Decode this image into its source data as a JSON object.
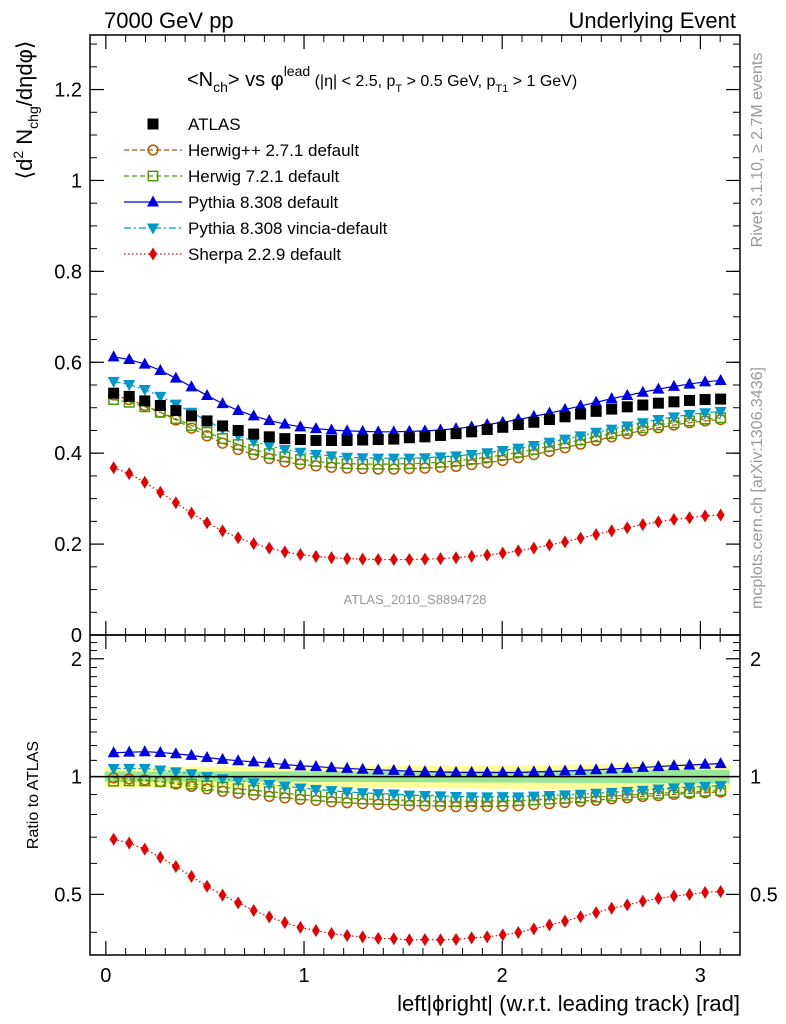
{
  "header": {
    "left": "7000 GeV pp",
    "right": "Underlying Event"
  },
  "side_labels": {
    "rivet": "Rivet 3.1.10, ≥ 2.7M events",
    "mcplots": "mcplots.cern.ch [arXiv:1306.3436]"
  },
  "title": {
    "main": "<N",
    "ch_sub": "ch",
    "vs": "> vs φ",
    "lead_sup": "lead",
    "cuts_a": " (|η| < 2.5, p",
    "T_sub": "T",
    "cuts_b": " > 0.5 GeV, p",
    "T1_sub": "T1",
    "cuts_c": " > 1 GeV)"
  },
  "watermark": "ATLAS_2010_S8894728",
  "ylabel_main": {
    "a": "⟨d",
    "sup2": "2",
    "b": " N",
    "sub": "chg",
    "c": "/dηdφ⟩"
  },
  "ylabel_ratio": "Ratio to ATLAS",
  "xlabel": "left|ϕright| (w.r.t. leading track) [rad]",
  "colors": {
    "atlas": "#000000",
    "herwigpp": "#b35900",
    "herwig7": "#4d9900",
    "pythia": "#0000e6",
    "vincia": "#0099cc",
    "sherpa": "#e60000",
    "band_outer": "#ffff99",
    "band_inner": "#99e699"
  },
  "chart_data": {
    "type": "scatter",
    "x": [
      0.0393,
      0.1178,
      0.1963,
      0.2749,
      0.3534,
      0.432,
      0.5105,
      0.589,
      0.6676,
      0.7461,
      0.8247,
      0.9032,
      0.9817,
      1.0603,
      1.1388,
      1.2174,
      1.2959,
      1.3744,
      1.453,
      1.5315,
      1.6101,
      1.6886,
      1.7671,
      1.8457,
      1.9242,
      2.0028,
      2.0813,
      2.1598,
      2.2384,
      2.3169,
      2.3955,
      2.474,
      2.5525,
      2.6311,
      2.7096,
      2.7882,
      2.8667,
      2.9452,
      3.0238,
      3.1023
    ],
    "xlim": [
      -0.08,
      3.2
    ],
    "main_ylim": [
      0,
      1.32
    ],
    "main_yticks": [
      "0",
      "0.2",
      "0.4",
      "0.6",
      "0.8",
      "1",
      "1.2"
    ],
    "main_ytick_values": [
      0,
      0.2,
      0.4,
      0.6,
      0.8,
      1.0,
      1.2
    ],
    "ratio_ylim": [
      0.35,
      2.3
    ],
    "ratio_yticks": [
      "0.5",
      "1",
      "2"
    ],
    "ratio_ytick_values": [
      0.5,
      1,
      2
    ],
    "xticks": [
      "0",
      "1",
      "2",
      "3"
    ],
    "xtick_values": [
      0,
      1,
      2,
      3
    ],
    "legend_position": "top-left",
    "series": [
      {
        "name": "ATLAS",
        "key": "atlas",
        "marker": "square",
        "line": "none",
        "values": [
          0.532,
          0.525,
          0.515,
          0.505,
          0.494,
          0.482,
          0.471,
          0.46,
          0.45,
          0.442,
          0.436,
          0.432,
          0.43,
          0.428,
          0.428,
          0.428,
          0.429,
          0.43,
          0.431,
          0.434,
          0.436,
          0.439,
          0.443,
          0.447,
          0.452,
          0.457,
          0.463,
          0.468,
          0.474,
          0.48,
          0.486,
          0.492,
          0.497,
          0.502,
          0.506,
          0.51,
          0.513,
          0.516,
          0.518,
          0.519
        ]
      },
      {
        "name": "Herwig++ 2.7.1 default",
        "key": "herwigpp",
        "marker": "circle-open",
        "line": "dashed",
        "values": [
          0.528,
          0.518,
          0.505,
          0.49,
          0.473,
          0.455,
          0.438,
          0.422,
          0.408,
          0.397,
          0.388,
          0.381,
          0.376,
          0.372,
          0.369,
          0.367,
          0.366,
          0.365,
          0.365,
          0.366,
          0.367,
          0.369,
          0.371,
          0.375,
          0.379,
          0.384,
          0.39,
          0.397,
          0.404,
          0.412,
          0.42,
          0.428,
          0.436,
          0.443,
          0.45,
          0.456,
          0.462,
          0.467,
          0.471,
          0.474
        ]
      },
      {
        "name": "Herwig 7.2.1 default",
        "key": "herwig7",
        "marker": "square-open",
        "line": "dashed",
        "values": [
          0.518,
          0.512,
          0.502,
          0.49,
          0.476,
          0.461,
          0.446,
          0.432,
          0.419,
          0.408,
          0.399,
          0.392,
          0.386,
          0.382,
          0.379,
          0.377,
          0.376,
          0.376,
          0.376,
          0.377,
          0.378,
          0.38,
          0.383,
          0.387,
          0.391,
          0.396,
          0.402,
          0.408,
          0.415,
          0.422,
          0.429,
          0.436,
          0.443,
          0.45,
          0.456,
          0.462,
          0.467,
          0.471,
          0.475,
          0.478
        ]
      },
      {
        "name": "Pythia 8.308 default",
        "key": "pythia",
        "marker": "triangle-up",
        "line": "solid",
        "values": [
          0.612,
          0.606,
          0.596,
          0.582,
          0.565,
          0.546,
          0.527,
          0.509,
          0.494,
          0.482,
          0.472,
          0.464,
          0.458,
          0.454,
          0.451,
          0.449,
          0.448,
          0.447,
          0.447,
          0.448,
          0.449,
          0.451,
          0.454,
          0.458,
          0.463,
          0.468,
          0.474,
          0.481,
          0.488,
          0.496,
          0.504,
          0.512,
          0.52,
          0.527,
          0.534,
          0.541,
          0.547,
          0.552,
          0.557,
          0.56
        ]
      },
      {
        "name": "Pythia 8.308 vincia-default",
        "key": "vincia",
        "marker": "triangle-down",
        "line": "dashdot",
        "values": [
          0.558,
          0.551,
          0.54,
          0.525,
          0.508,
          0.49,
          0.471,
          0.454,
          0.439,
          0.426,
          0.416,
          0.408,
          0.402,
          0.397,
          0.394,
          0.391,
          0.39,
          0.389,
          0.389,
          0.389,
          0.39,
          0.392,
          0.394,
          0.397,
          0.401,
          0.406,
          0.411,
          0.417,
          0.424,
          0.431,
          0.438,
          0.446,
          0.453,
          0.46,
          0.467,
          0.474,
          0.48,
          0.485,
          0.489,
          0.492
        ]
      },
      {
        "name": "Sherpa 2.2.9 default",
        "key": "sherpa",
        "marker": "diamond",
        "line": "dotted",
        "values": [
          0.368,
          0.355,
          0.336,
          0.314,
          0.291,
          0.268,
          0.247,
          0.229,
          0.214,
          0.201,
          0.191,
          0.183,
          0.177,
          0.173,
          0.17,
          0.168,
          0.167,
          0.166,
          0.166,
          0.166,
          0.167,
          0.168,
          0.17,
          0.173,
          0.176,
          0.18,
          0.185,
          0.191,
          0.198,
          0.205,
          0.213,
          0.221,
          0.229,
          0.236,
          0.243,
          0.249,
          0.254,
          0.258,
          0.262,
          0.264
        ]
      }
    ]
  }
}
